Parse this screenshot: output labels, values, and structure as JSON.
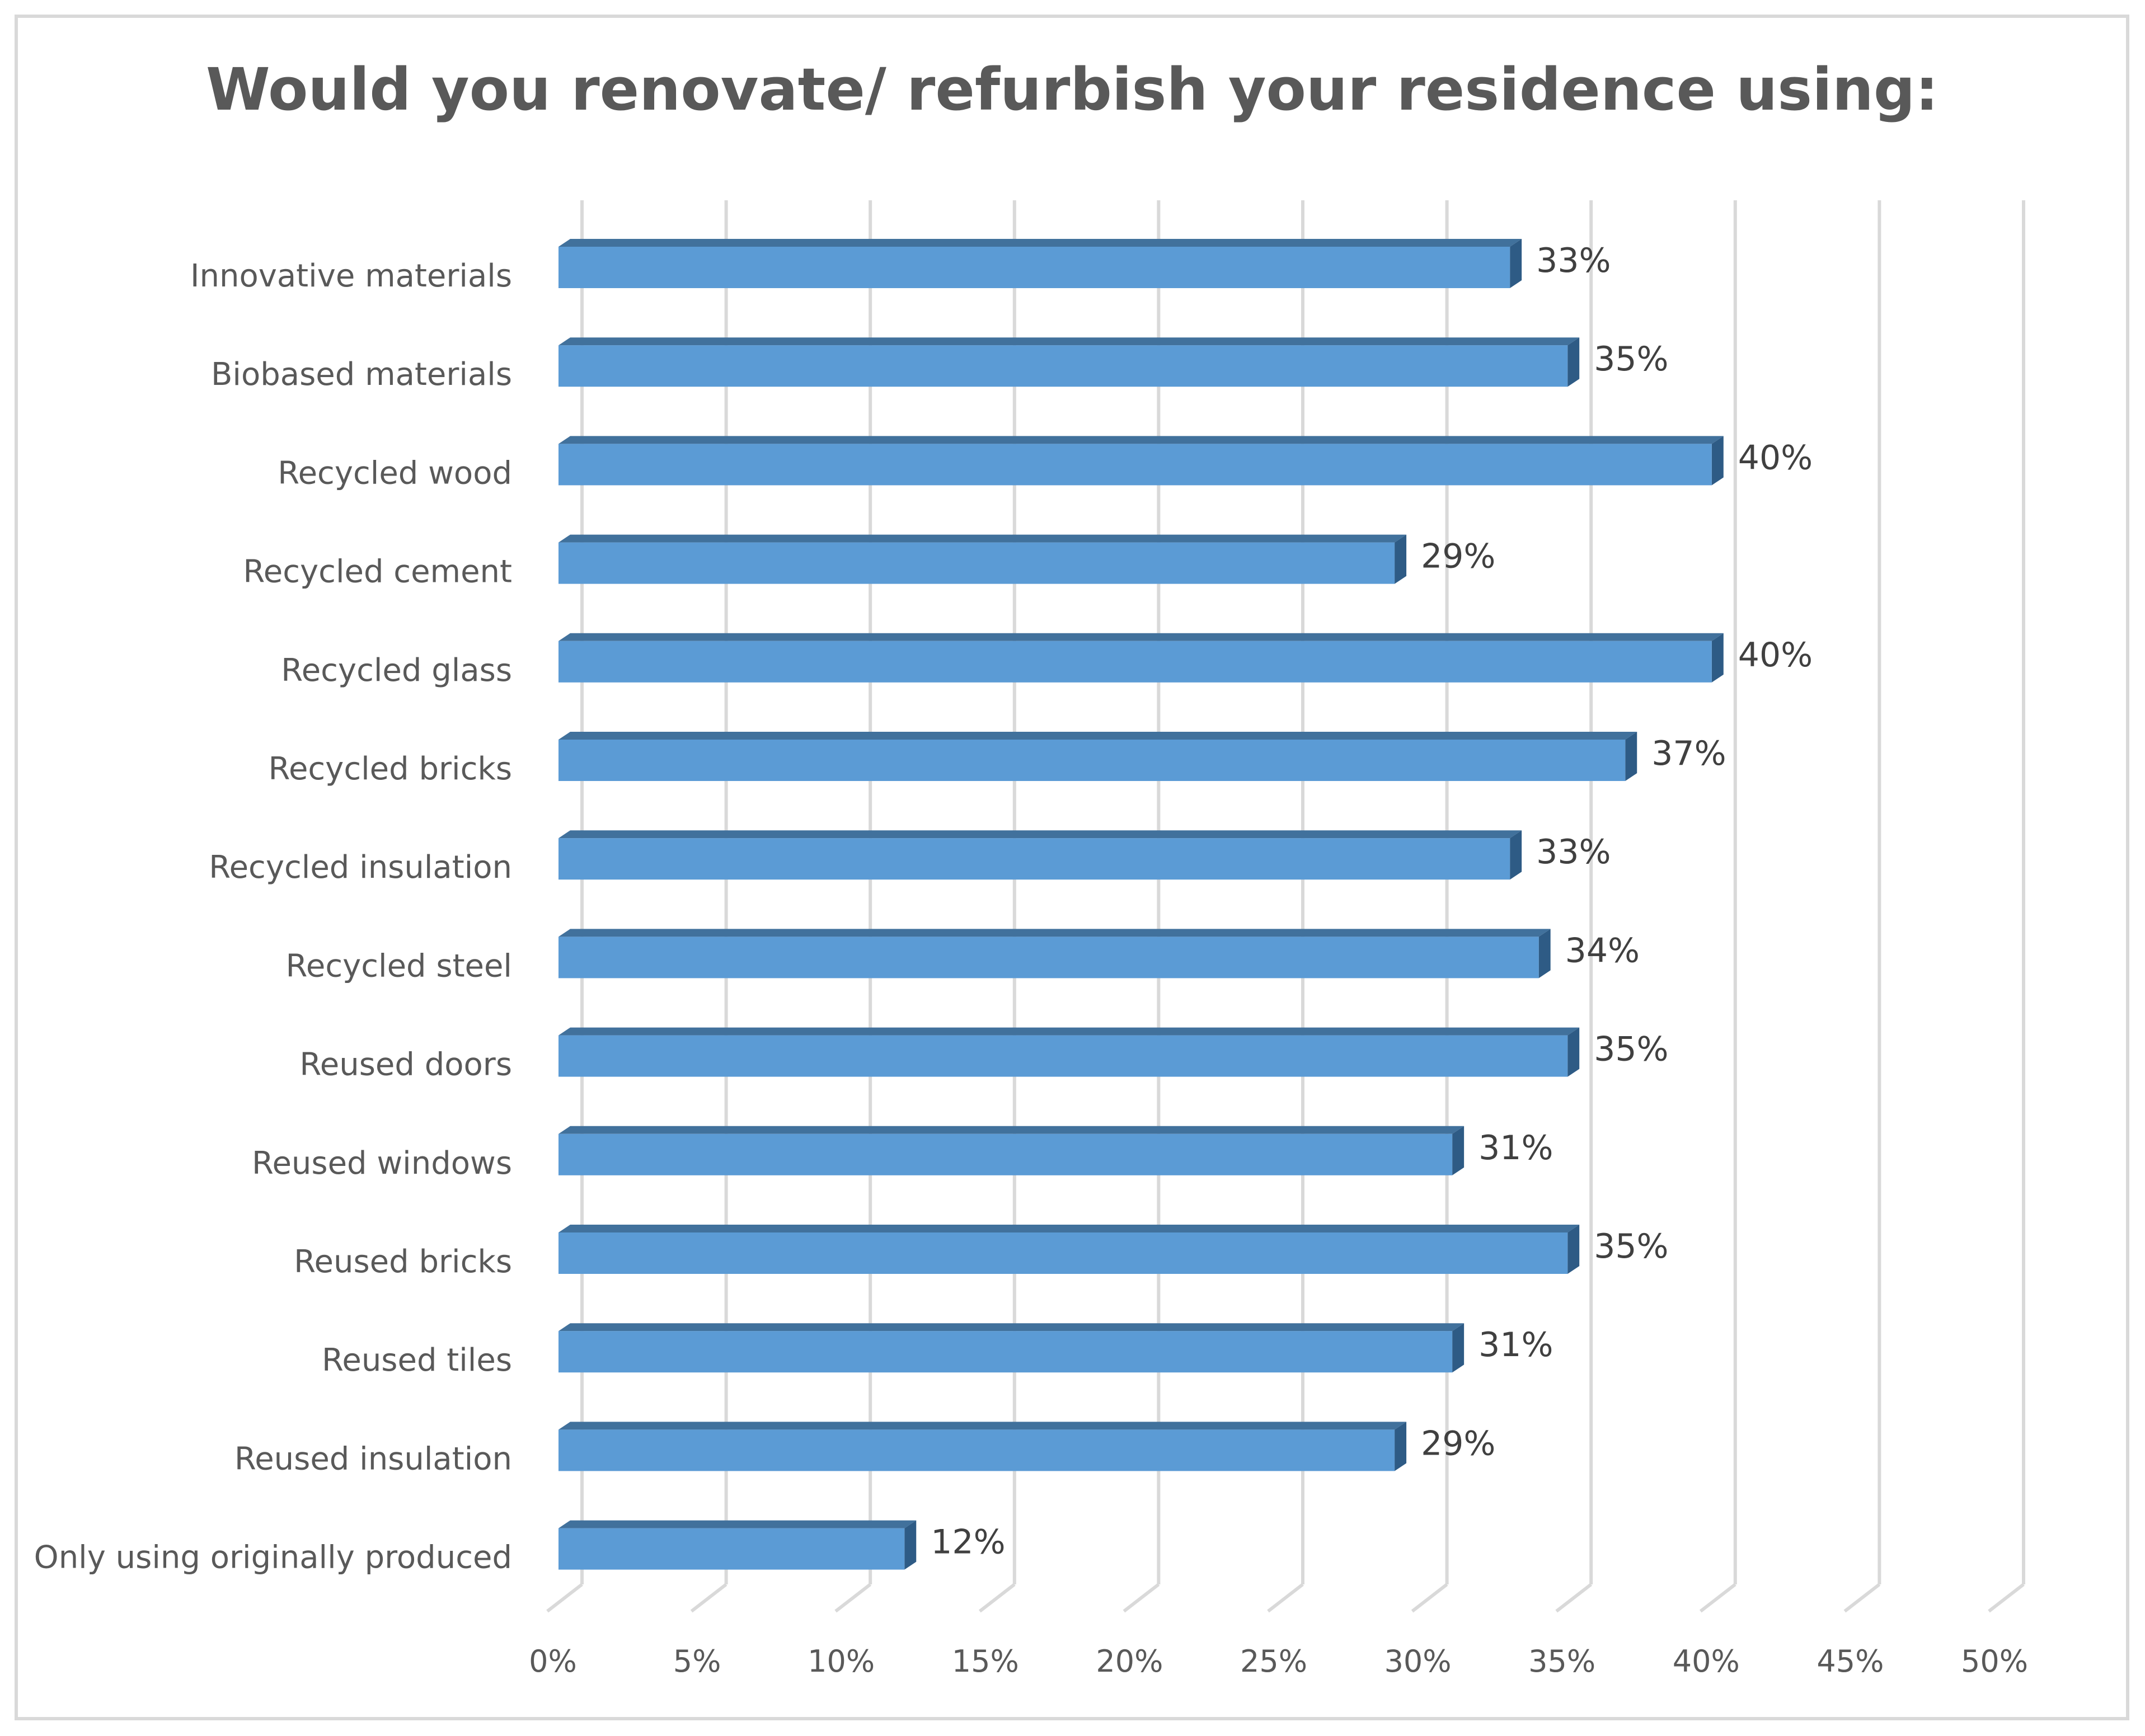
{
  "chart_data": {
    "type": "bar",
    "orientation": "horizontal",
    "title": "Would you renovate/ refurbish your residence using:",
    "categories": [
      "Innovative materials",
      "Biobased materials",
      "Recycled wood",
      "Recycled cement",
      "Recycled glass",
      "Recycled bricks",
      "Recycled insulation",
      "Recycled steel",
      "Reused doors",
      "Reused windows",
      "Reused bricks",
      "Reused tiles",
      "Reused insulation",
      "Only using originally produced"
    ],
    "values": [
      33,
      35,
      40,
      29,
      40,
      37,
      33,
      34,
      35,
      31,
      35,
      31,
      29,
      12
    ],
    "data_labels": [
      "33%",
      "35%",
      "40%",
      "29%",
      "40%",
      "37%",
      "33%",
      "34%",
      "35%",
      "31%",
      "35%",
      "31%",
      "29%",
      "12%"
    ],
    "xlim": [
      0,
      50
    ],
    "x_ticks": [
      0,
      5,
      10,
      15,
      20,
      25,
      30,
      35,
      40,
      45,
      50
    ],
    "x_tick_labels": [
      "0%",
      "5%",
      "10%",
      "15%",
      "20%",
      "25%",
      "30%",
      "35%",
      "40%",
      "45%",
      "50%"
    ],
    "xlabel": "",
    "ylabel": "",
    "grid": true,
    "style": "3d",
    "legend": "none",
    "colors": {
      "bar_front": "#5b9bd5",
      "bar_top": "#41719c",
      "bar_side": "#2e5b85",
      "grid": "#d9d9d9",
      "text": "#595959",
      "frame": "#d9d9d9"
    }
  }
}
